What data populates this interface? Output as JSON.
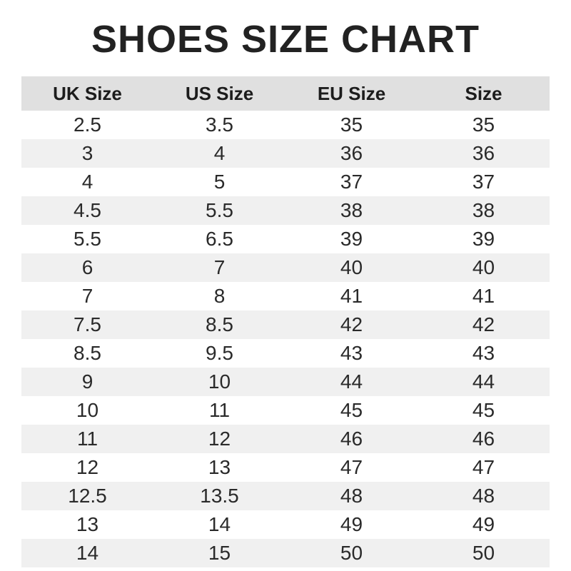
{
  "title": "SHOES SIZE CHART",
  "colors": {
    "header_bg": "#e0e0e0",
    "row_alt_bg": "#f0f0f0",
    "row_bg": "#ffffff",
    "text": "#222222"
  },
  "chart_data": {
    "type": "table",
    "title": "SHOES SIZE CHART",
    "columns": [
      "UK Size",
      "US Size",
      "EU Size",
      "Size"
    ],
    "rows": [
      [
        "2.5",
        "3.5",
        "35",
        "35"
      ],
      [
        "3",
        "4",
        "36",
        "36"
      ],
      [
        "4",
        "5",
        "37",
        "37"
      ],
      [
        "4.5",
        "5.5",
        "38",
        "38"
      ],
      [
        "5.5",
        "6.5",
        "39",
        "39"
      ],
      [
        "6",
        "7",
        "40",
        "40"
      ],
      [
        "7",
        "8",
        "41",
        "41"
      ],
      [
        "7.5",
        "8.5",
        "42",
        "42"
      ],
      [
        "8.5",
        "9.5",
        "43",
        "43"
      ],
      [
        "9",
        "10",
        "44",
        "44"
      ],
      [
        "10",
        "11",
        "45",
        "45"
      ],
      [
        "11",
        "12",
        "46",
        "46"
      ],
      [
        "12",
        "13",
        "47",
        "47"
      ],
      [
        "12.5",
        "13.5",
        "48",
        "48"
      ],
      [
        "13",
        "14",
        "49",
        "49"
      ],
      [
        "14",
        "15",
        "50",
        "50"
      ]
    ],
    "layout": {
      "header_row_shaded": true,
      "alternating_rows": true,
      "grid": false
    }
  }
}
